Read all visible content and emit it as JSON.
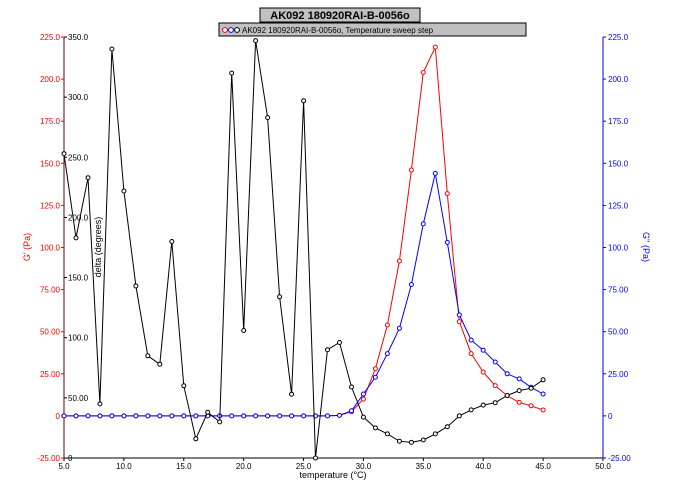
{
  "chart_data": {
    "type": "line",
    "title": "AK092 180920RAI-B-0056o",
    "legend_label": "AK092 180920RAI-B-0056o, Temperature sweep step",
    "legend_placement": "top",
    "xlabel": "temperature (°C)",
    "xlim": [
      5,
      50
    ],
    "x_ticks": [
      "5.0",
      "10.0",
      "15.0",
      "20.0",
      "25.0",
      "30.0",
      "35.0",
      "40.0",
      "45.0",
      "50.0"
    ],
    "y_left_label": "G' (Pa)",
    "y_left_lim": [
      -25,
      225
    ],
    "y_left_ticks": [
      "-25.00",
      "0",
      "25.00",
      "50.00",
      "75.00",
      "100.0",
      "125.0",
      "150.0",
      "175.0",
      "200.0",
      "225.0"
    ],
    "y_delta_label": "delta (degrees)",
    "y_delta_lim": [
      0,
      350
    ],
    "y_delta_ticks": [
      "0",
      "50.00",
      "100.0",
      "150.0",
      "200.0",
      "250.0",
      "300.0",
      "350.0"
    ],
    "y_right_label": "G'' (Pa)",
    "y_right_lim": [
      -25,
      225
    ],
    "y_right_ticks": [
      "-25.00",
      "0",
      "25.00",
      "50.00",
      "75.00",
      "100.0",
      "125.0",
      "150.0",
      "175.0",
      "200.0",
      "225.0"
    ],
    "grid": false,
    "colors": {
      "g_prime": "#ff0000",
      "g_double_prime": "#0000ff",
      "delta": "#000000",
      "title_bg": "#c0c0c0"
    },
    "x": [
      5,
      6,
      7,
      8,
      9,
      10,
      11,
      12,
      13,
      14,
      15,
      16,
      17,
      18,
      19,
      20,
      21,
      22,
      23,
      24,
      25,
      26,
      27,
      28,
      29,
      30,
      31,
      32,
      33,
      34,
      35,
      36,
      37,
      38,
      39,
      40,
      41,
      42,
      43,
      44,
      45
    ],
    "series": [
      {
        "key": "g_prime",
        "axis": "left",
        "values": [
          0.01,
          0.01,
          0.01,
          0.01,
          0.01,
          0.01,
          0.01,
          0.01,
          0.01,
          0.01,
          0.01,
          0.01,
          0.01,
          0.01,
          0.01,
          0.01,
          0.01,
          0.01,
          0.01,
          0.01,
          0.01,
          0.01,
          0.01,
          0.3,
          2.5,
          10,
          28,
          54,
          92,
          146,
          204,
          219,
          132,
          56,
          37,
          26,
          18,
          12,
          8,
          6,
          3.5
        ]
      },
      {
        "key": "g_double_prime",
        "axis": "right",
        "values": [
          0.01,
          0.01,
          0.01,
          0.01,
          0.01,
          0.01,
          0.01,
          0.01,
          0.01,
          0.01,
          0.01,
          0.01,
          0.01,
          0.01,
          0.01,
          0.01,
          0.01,
          0.01,
          0.01,
          0.01,
          0.01,
          0.01,
          0.01,
          0.3,
          3,
          13,
          23,
          37,
          52,
          78,
          114,
          144,
          103,
          60,
          45,
          39,
          32,
          25,
          22,
          17,
          13
        ]
      },
      {
        "key": "delta",
        "axis": "delta",
        "values": [
          253,
          183,
          233,
          45,
          340,
          222,
          143,
          85,
          78,
          180,
          60,
          16,
          38,
          30,
          320,
          106,
          347,
          283,
          134,
          53,
          297,
          0,
          90,
          96,
          59,
          34,
          25,
          20,
          14,
          13,
          15,
          20,
          26,
          35,
          40,
          44,
          46,
          52,
          56,
          58,
          65
        ]
      }
    ]
  }
}
